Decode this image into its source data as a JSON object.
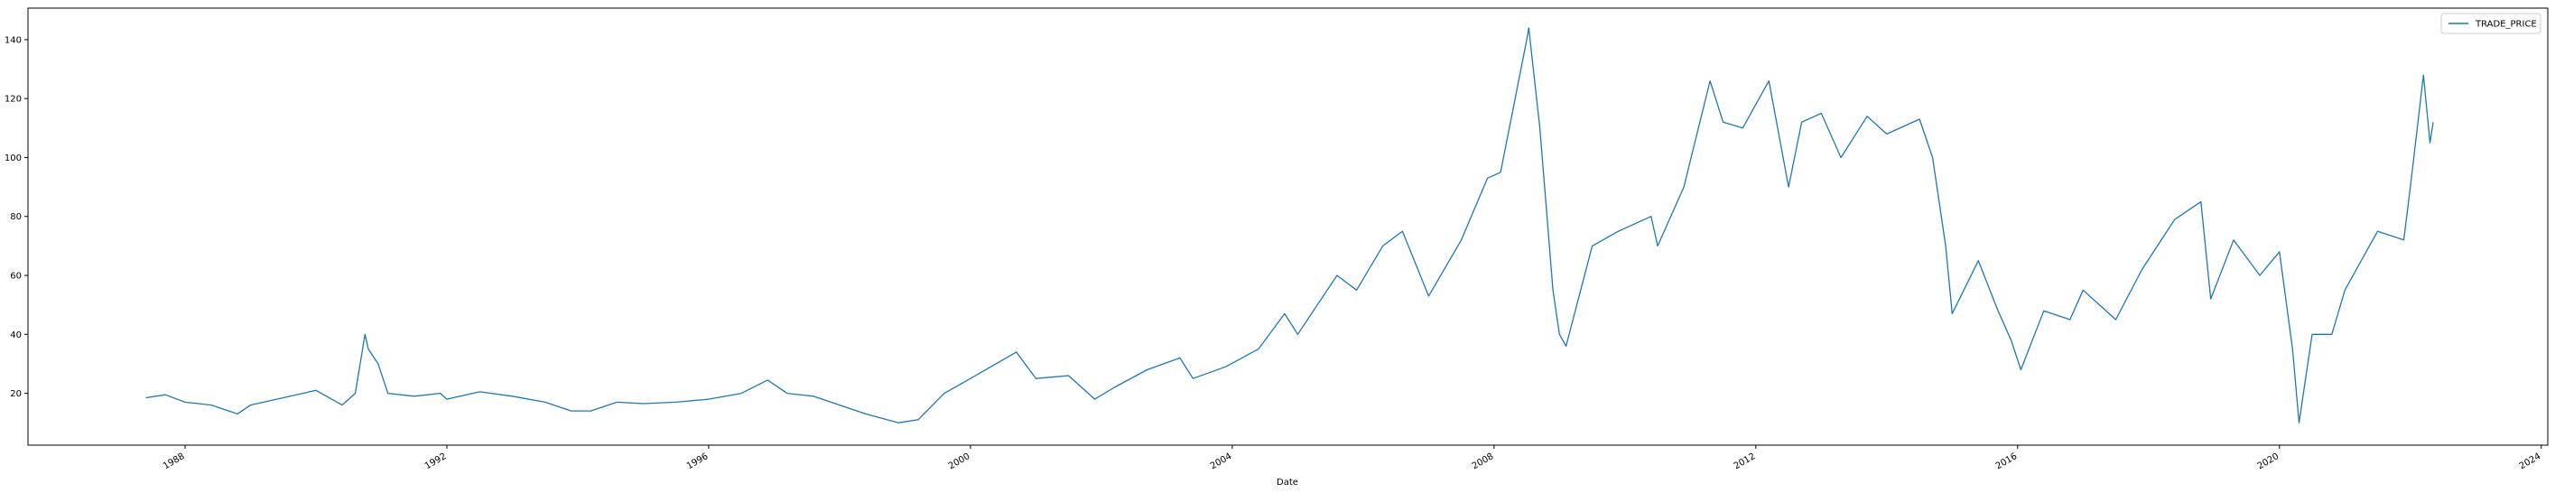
{
  "chart_data": {
    "type": "line",
    "xlabel": "Date",
    "x": [
      1987.4,
      1987.7,
      1988.0,
      1988.4,
      1988.8,
      1989.0,
      1989.4,
      1989.8,
      1990.0,
      1990.4,
      1990.6,
      1990.75,
      1990.8,
      1990.95,
      1991.1,
      1991.5,
      1991.9,
      1992.0,
      1992.5,
      1993.0,
      1993.5,
      1993.9,
      1994.2,
      1994.6,
      1995.0,
      1995.5,
      1996.0,
      1996.5,
      1996.9,
      1997.2,
      1997.6,
      1998.0,
      1998.4,
      1998.9,
      1999.2,
      1999.6,
      2000.0,
      2000.7,
      2001.0,
      2001.5,
      2001.9,
      2002.2,
      2002.7,
      2003.2,
      2003.4,
      2003.9,
      2004.4,
      2004.8,
      2005.0,
      2005.6,
      2005.9,
      2006.3,
      2006.6,
      2007.0,
      2007.5,
      2007.9,
      2008.1,
      2008.5,
      2008.53,
      2008.7,
      2008.9,
      2009.0,
      2009.1,
      2009.5,
      2009.9,
      2010.4,
      2010.5,
      2010.9,
      2011.3,
      2011.5,
      2011.8,
      2012.2,
      2012.5,
      2012.7,
      2013.0,
      2013.3,
      2013.7,
      2014.0,
      2014.5,
      2014.7,
      2014.9,
      2015.0,
      2015.4,
      2015.7,
      2015.9,
      2016.05,
      2016.4,
      2016.8,
      2017.0,
      2017.5,
      2017.9,
      2018.4,
      2018.8,
      2018.95,
      2019.3,
      2019.7,
      2020.0,
      2020.2,
      2020.3,
      2020.5,
      2020.8,
      2021.0,
      2021.5,
      2021.9,
      2022.0,
      2022.2,
      2022.3,
      2022.35
    ],
    "series": [
      {
        "name": "TRADE_PRICE",
        "color": "#1f77b4",
        "values": [
          18.5,
          19.5,
          17,
          16,
          13,
          16,
          18,
          20,
          21,
          16,
          20,
          40,
          35,
          30,
          20,
          19,
          20,
          18,
          20.5,
          19,
          17,
          14,
          14,
          17,
          16.5,
          17,
          18,
          20,
          24.5,
          20,
          19,
          16,
          13,
          10,
          11,
          20,
          25,
          34,
          25,
          26,
          18,
          22,
          28,
          32,
          25,
          29,
          35,
          47,
          40,
          60,
          55,
          70,
          75,
          53,
          72,
          93,
          95,
          140,
          144,
          110,
          55,
          40,
          36,
          70,
          75,
          80,
          70,
          90,
          126,
          112,
          110,
          126,
          90,
          112,
          115,
          100,
          114,
          108,
          113,
          100,
          70,
          47,
          65,
          48,
          38,
          28,
          48,
          45,
          55,
          45,
          62,
          79,
          85,
          52,
          72,
          60,
          68,
          35,
          10,
          40,
          40,
          55,
          75,
          72,
          90,
          128,
          105,
          112
        ]
      }
    ],
    "xlim": [
      1985.6,
      2024.1
    ],
    "xticks": [
      1988,
      1992,
      1996,
      2000,
      2004,
      2008,
      2012,
      2016,
      2020,
      2024
    ],
    "ylim": [
      2.4,
      150.7
    ],
    "yticks": [
      20,
      40,
      60,
      80,
      100,
      120,
      140
    ],
    "legend": "upper right"
  }
}
